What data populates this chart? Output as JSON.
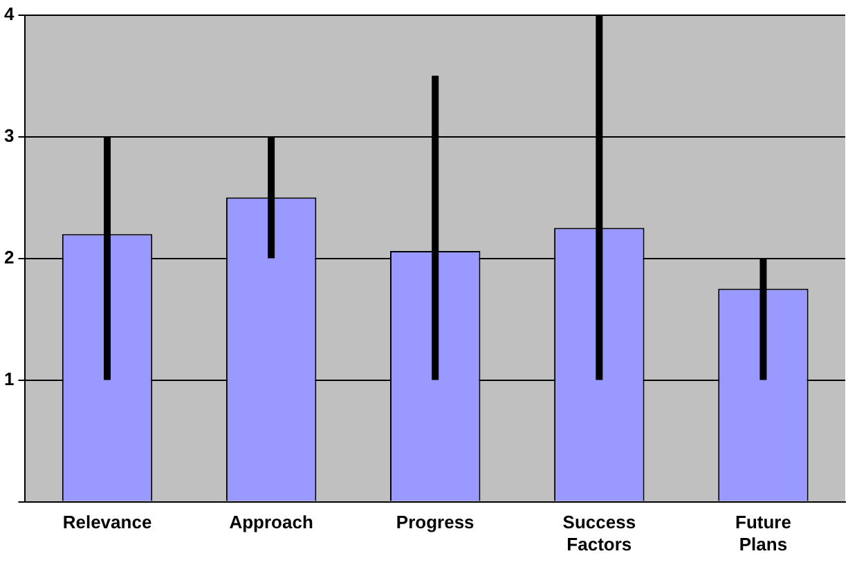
{
  "chart_data": {
    "type": "bar",
    "categories": [
      "Relevance",
      "Approach",
      "Progress",
      "Success Factors",
      "Future Plans"
    ],
    "values": [
      2.2,
      2.5,
      2.06,
      2.25,
      1.75
    ],
    "errors": [
      [
        1,
        3
      ],
      [
        2,
        3
      ],
      [
        1,
        3.5
      ],
      [
        1,
        4
      ],
      [
        1,
        2
      ]
    ],
    "color": "#9999ff",
    "ylim": [
      0,
      4
    ],
    "yticks": [
      {
        "value": 0,
        "label": null
      },
      1,
      2,
      3,
      4
    ],
    "grid": "y",
    "legend": false
  }
}
